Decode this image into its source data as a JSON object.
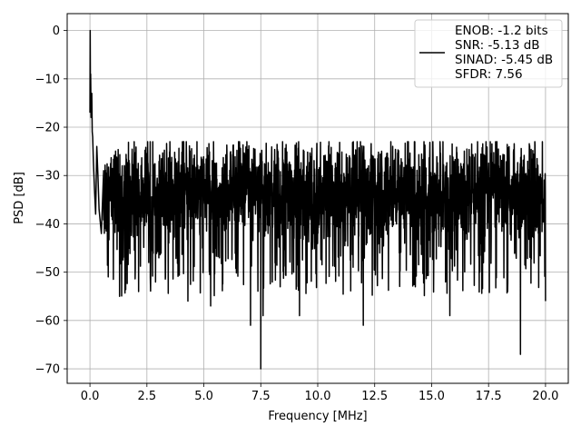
{
  "chart_data": {
    "type": "line",
    "title": "",
    "xlabel": "Frequency [MHz]",
    "ylabel": "PSD [dB]",
    "xlim": [
      -1.0,
      21.0
    ],
    "ylim": [
      -73.0,
      3.5
    ],
    "xticks": [
      0.0,
      2.5,
      5.0,
      7.5,
      10.0,
      12.5,
      15.0,
      17.5,
      20.0
    ],
    "xtick_labels": [
      "0.0",
      "2.5",
      "5.0",
      "7.5",
      "10.0",
      "12.5",
      "15.0",
      "17.5",
      "20.0"
    ],
    "yticks": [
      0,
      -10,
      -20,
      -30,
      -40,
      -50,
      -60,
      -70
    ],
    "ytick_labels": [
      "0",
      "−10",
      "−20",
      "−30",
      "−40",
      "−50",
      "−60",
      "−70"
    ],
    "grid": true,
    "legend_position": "top-right",
    "line_color": "#000000",
    "series": [
      {
        "legend_lines": [
          "ENOB: -1.2 bits",
          "SNR: -5.13 dB",
          "SINAD: -5.45 dB",
          "SFDR: 7.56"
        ],
        "color": "#000000",
        "x_range": [
          0.0,
          20.0
        ],
        "noise_floor_mean": -34,
        "noise_peak_max": -23,
        "noise_trough_min": -70,
        "points": [
          [
            0.0,
            -17
          ],
          [
            0.01,
            0
          ],
          [
            0.02,
            -12
          ],
          [
            0.03,
            -9
          ],
          [
            0.05,
            -18
          ],
          [
            0.08,
            -13
          ],
          [
            0.1,
            -21
          ],
          [
            0.12,
            -22
          ],
          [
            0.15,
            -27
          ],
          [
            0.2,
            -33
          ],
          [
            0.25,
            -38
          ],
          [
            0.3,
            -24
          ],
          [
            0.35,
            -30
          ],
          [
            0.4,
            -37
          ],
          [
            0.5,
            -42
          ],
          [
            0.6,
            -29
          ],
          [
            1.3,
            -55
          ],
          [
            2.65,
            -51
          ],
          [
            4.3,
            -56
          ],
          [
            5.3,
            -57
          ],
          [
            7.05,
            -61
          ],
          [
            7.5,
            -70
          ],
          [
            7.6,
            -59
          ],
          [
            9.2,
            -59
          ],
          [
            12.0,
            -61
          ],
          [
            15.8,
            -59
          ],
          [
            18.9,
            -67
          ],
          [
            20.0,
            -56
          ]
        ]
      }
    ]
  }
}
